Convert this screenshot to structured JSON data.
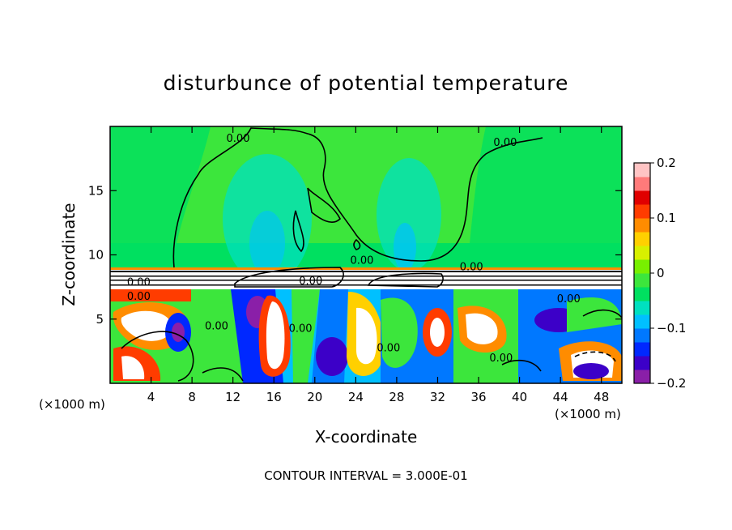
{
  "chart_data": {
    "type": "heatmap",
    "title": "disturbunce of potential temperature",
    "xlabel": "X-coordinate",
    "ylabel": "Z-coordinate",
    "x_unit": "(×1000 m)",
    "xlim": [
      0,
      50
    ],
    "ylim": [
      0,
      20
    ],
    "x_ticks": [
      {
        "value": 4,
        "label": "4"
      },
      {
        "value": 8,
        "label": "8"
      },
      {
        "value": 12,
        "label": "12"
      },
      {
        "value": 16,
        "label": "16"
      },
      {
        "value": 20,
        "label": "20"
      },
      {
        "value": 24,
        "label": "24"
      },
      {
        "value": 28,
        "label": "28"
      },
      {
        "value": 32,
        "label": "32"
      },
      {
        "value": 36,
        "label": "36"
      },
      {
        "value": 40,
        "label": "40"
      },
      {
        "value": 44,
        "label": "44"
      },
      {
        "value": 48,
        "label": "48"
      }
    ],
    "y_ticks": [
      {
        "value": 5,
        "label": "5"
      },
      {
        "value": 10,
        "label": "10"
      },
      {
        "value": 15,
        "label": "15"
      }
    ],
    "colorbar": {
      "min": -0.2,
      "max": 0.2,
      "ticks": [
        {
          "value": 0.2,
          "label": "0.2"
        },
        {
          "value": 0.1,
          "label": "0.1"
        },
        {
          "value": 0,
          "label": "0"
        },
        {
          "value": -0.1,
          "label": "−0.1"
        },
        {
          "value": -0.2,
          "label": "−0.2"
        }
      ],
      "colors": [
        "#8a1fa8",
        "#3c00c8",
        "#0028ff",
        "#0078ff",
        "#00c0ff",
        "#00e0c0",
        "#00e060",
        "#3ce63c",
        "#78f000",
        "#d8f000",
        "#ffd000",
        "#ff8c00",
        "#ff3c00",
        "#e00000",
        "#ff7a7a",
        "#ffc4c4"
      ]
    },
    "contour_interval_note": "CONTOUR INTERVAL = 3.000E-01",
    "contour_labels": [
      {
        "x": 12.5,
        "z": 18.8,
        "text": "0.00"
      },
      {
        "x": 38.6,
        "z": 18.5,
        "text": "0.00"
      },
      {
        "x": 24.6,
        "z": 9.3,
        "text": "0.00"
      },
      {
        "x": 35.3,
        "z": 8.8,
        "text": "0.00"
      },
      {
        "x": 2.8,
        "z": 7.6,
        "text": "0.00"
      },
      {
        "x": 2.8,
        "z": 6.5,
        "text": "0.00"
      },
      {
        "x": 19.6,
        "z": 7.7,
        "text": "0.00"
      },
      {
        "x": 10.4,
        "z": 4.2,
        "text": "0.00"
      },
      {
        "x": 18.6,
        "z": 4.0,
        "text": "0.00"
      },
      {
        "x": 27.2,
        "z": 2.5,
        "text": "0.00"
      },
      {
        "x": 38.2,
        "z": 1.7,
        "text": "0.00"
      },
      {
        "x": 44.8,
        "z": 6.3,
        "text": "0.00"
      }
    ]
  }
}
